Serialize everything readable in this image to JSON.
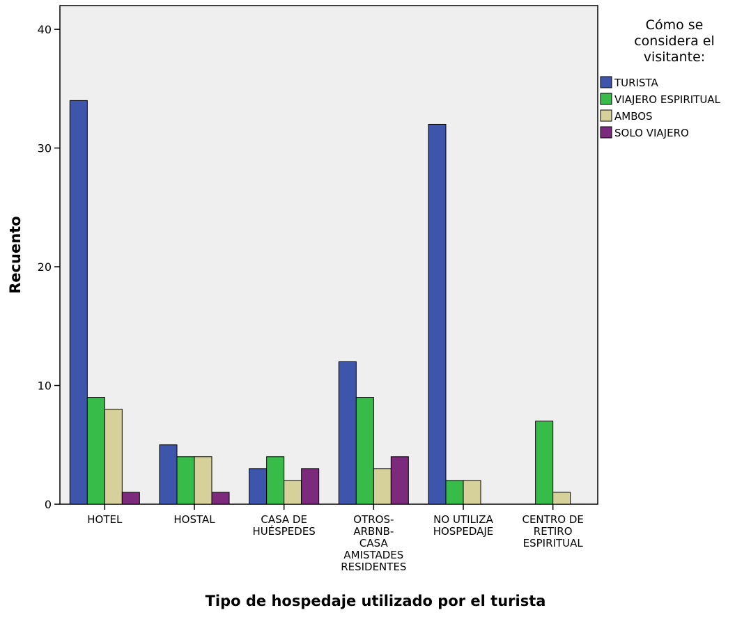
{
  "chart_data": {
    "type": "bar",
    "title": "",
    "xlabel": "Tipo de hospedaje utilizado por el turista",
    "ylabel": "Recuento",
    "ylim": [
      0,
      42
    ],
    "yticks": [
      0,
      10,
      20,
      30,
      40
    ],
    "grid": false,
    "legend_position": "top-right",
    "legend_title": [
      "Cómo se",
      "considera el",
      "visitante:"
    ],
    "categories": [
      [
        "HOTEL"
      ],
      [
        "HOSTAL"
      ],
      [
        "CASA DE",
        "HUÉSPEDES"
      ],
      [
        "OTROS-",
        "ARBNB-",
        "CASA",
        "AMISTADES",
        "RESIDENTES"
      ],
      [
        "NO UTILIZA",
        "HOSPEDAJE"
      ],
      [
        "CENTRO DE",
        "RETIRO",
        "ESPIRITUAL"
      ]
    ],
    "series": [
      {
        "name": "TURISTA",
        "color": "#3d55ab",
        "values": [
          34,
          5,
          3,
          12,
          32,
          0
        ]
      },
      {
        "name": "VIAJERO ESPIRITUAL",
        "color": "#37bc4a",
        "values": [
          9,
          4,
          4,
          9,
          2,
          7
        ]
      },
      {
        "name": "AMBOS",
        "color": "#d6d19b",
        "values": [
          8,
          4,
          2,
          3,
          2,
          1
        ]
      },
      {
        "name": "SOLO VIAJERO",
        "color": "#7b2a7c",
        "values": [
          1,
          1,
          3,
          4,
          0,
          0
        ]
      }
    ],
    "plot_background": "#efefef"
  }
}
